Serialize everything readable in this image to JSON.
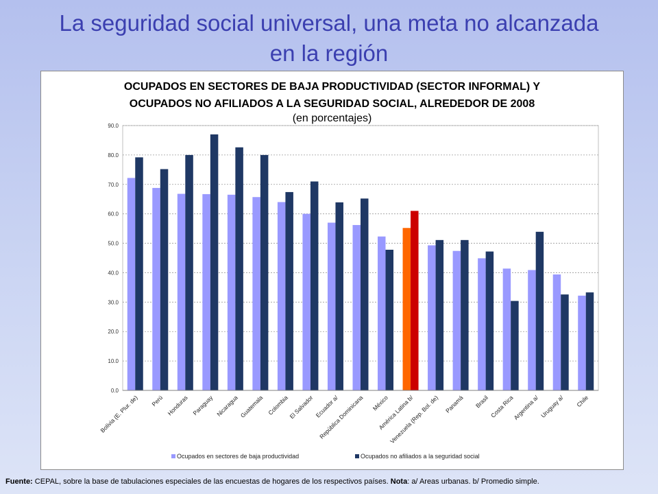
{
  "slide": {
    "title_line1": "La seguridad social universal, una meta no alcanzada",
    "title_line2": "en la región"
  },
  "chart_data": {
    "type": "bar",
    "title_line1": "OCUPADOS EN SECTORES DE BAJA PRODUCTIVIDAD (SECTOR INFORMAL) Y",
    "title_line2": "OCUPADOS NO AFILIADOS A LA SEGURIDAD SOCIAL, ALREDEDOR DE 2008",
    "subtitle": "(en porcentajes)",
    "xlabel": "",
    "ylabel": "",
    "ylim": [
      0,
      90
    ],
    "yticks": [
      "0.0",
      "10.0",
      "20.0",
      "30.0",
      "40.0",
      "50.0",
      "60.0",
      "70.0",
      "80.0",
      "90.0"
    ],
    "grid": true,
    "legend_position": "bottom",
    "categories": [
      "Bolivia (E. Plur. de)",
      "Perú",
      "Honduras",
      "Paraguay",
      "Nicaragua",
      "Guatemala",
      "Colombia",
      "El Salvador",
      "Ecuador a/",
      "República Dominicana",
      "México",
      "América Latina b/",
      "Venezuela (Rep. Bol. de)",
      "Panamá",
      "Brasil",
      "Costa Rica",
      "Argentina a/",
      "Uruguay a/",
      "Chile"
    ],
    "highlight_category": "América Latina b/",
    "series": [
      {
        "name": "Ocupados en sectores de baja productividad",
        "color": "#9999ff",
        "highlight_color": "#ff6600",
        "values": [
          72.2,
          68.8,
          66.8,
          66.7,
          66.5,
          65.7,
          64.0,
          60.0,
          57.0,
          56.2,
          52.3,
          55.2,
          49.3,
          47.4,
          44.9,
          41.4,
          40.9,
          39.4,
          32.2
        ]
      },
      {
        "name": "Ocupados no afiliados a la seguridad social",
        "color": "#1f3864",
        "highlight_color": "#cc0000",
        "values": [
          79.2,
          75.2,
          80.0,
          87.0,
          82.6,
          80.0,
          67.4,
          71.0,
          63.9,
          65.2,
          47.8,
          61.0,
          51.1,
          51.1,
          47.2,
          30.4,
          53.9,
          32.6,
          33.3
        ]
      }
    ]
  },
  "footer": {
    "source_label": "Fuente:",
    "source_text": " CEPAL, sobre la base de tabulaciones especiales de las encuestas de hogares de los respectivos países. ",
    "note_label": "Nota",
    "note_text": ": a/ Areas urbanas.  b/ Promedio simple."
  }
}
